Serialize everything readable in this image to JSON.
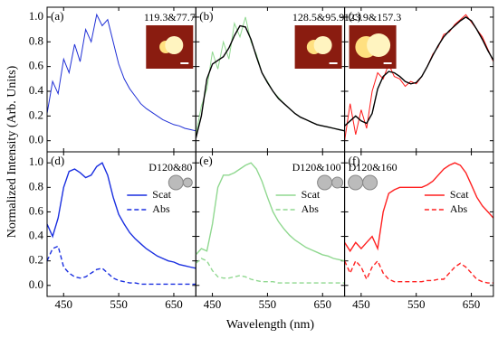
{
  "chart_data": [
    {
      "type": "line",
      "panel_label": "(a)",
      "annotation": "119.3&77.7",
      "ylabel": "Normalized Intensity (Arb. Units)",
      "x": [
        420,
        430,
        440,
        450,
        460,
        470,
        480,
        490,
        500,
        510,
        520,
        530,
        540,
        550,
        560,
        570,
        580,
        590,
        600,
        610,
        620,
        630,
        640,
        650,
        660,
        670,
        680,
        690
      ],
      "xlim": [
        420,
        690
      ],
      "ylim": [
        -0.09,
        1.08
      ],
      "yticks": [
        {
          "value": 0,
          "label": "0.0"
        },
        {
          "value": 0.2,
          "label": "0.2"
        },
        {
          "value": 0.4,
          "label": "0.4"
        },
        {
          "value": 0.6,
          "label": "0.6"
        },
        {
          "value": 0.8,
          "label": "0.8"
        },
        {
          "value": 1.0,
          "label": "1.0"
        }
      ],
      "series": [
        {
          "color": "#1f2fd6",
          "values": [
            0.22,
            0.48,
            0.38,
            0.66,
            0.55,
            0.78,
            0.64,
            0.9,
            0.8,
            1.02,
            0.93,
            0.98,
            0.8,
            0.62,
            0.5,
            0.42,
            0.36,
            0.3,
            0.26,
            0.23,
            0.2,
            0.17,
            0.15,
            0.13,
            0.12,
            0.1,
            0.09,
            0.08
          ]
        }
      ]
    },
    {
      "type": "line",
      "panel_label": "(b)",
      "annotation": "128.5&95.9",
      "x": [
        420,
        430,
        440,
        450,
        460,
        470,
        480,
        490,
        500,
        510,
        520,
        530,
        540,
        550,
        560,
        570,
        580,
        590,
        600,
        610,
        620,
        630,
        640,
        650,
        660,
        670,
        680,
        690
      ],
      "xlim": [
        420,
        690
      ],
      "ylim": [
        -0.09,
        1.08
      ],
      "series": [
        {
          "color": "#8fd88f",
          "values": [
            0.05,
            0.28,
            0.42,
            0.72,
            0.58,
            0.8,
            0.66,
            0.95,
            0.84,
            1.0,
            0.8,
            0.7,
            0.55,
            0.48,
            0.4,
            0.35,
            0.3,
            0.26,
            0.22,
            0.19,
            0.17,
            0.15,
            0.13,
            0.12,
            0.11,
            0.1,
            0.09,
            0.08
          ]
        },
        {
          "color": "#000000",
          "values": [
            0.02,
            0.2,
            0.5,
            0.62,
            0.65,
            0.68,
            0.75,
            0.85,
            0.93,
            0.92,
            0.82,
            0.68,
            0.55,
            0.47,
            0.4,
            0.34,
            0.3,
            0.26,
            0.22,
            0.19,
            0.17,
            0.15,
            0.13,
            0.12,
            0.11,
            0.1,
            0.09,
            0.08
          ]
        }
      ]
    },
    {
      "type": "line",
      "panel_label": "(c)",
      "annotation": "123.9&157.3",
      "x": [
        420,
        430,
        440,
        450,
        460,
        470,
        480,
        490,
        500,
        510,
        520,
        530,
        540,
        550,
        560,
        570,
        580,
        590,
        600,
        610,
        620,
        630,
        640,
        650,
        660,
        670,
        680,
        690
      ],
      "xlim": [
        420,
        690
      ],
      "ylim": [
        -0.09,
        1.08
      ],
      "series": [
        {
          "color": "#ff1a1a",
          "values": [
            0.0,
            0.3,
            0.05,
            0.25,
            0.1,
            0.4,
            0.55,
            0.5,
            0.62,
            0.52,
            0.5,
            0.44,
            0.48,
            0.46,
            0.52,
            0.6,
            0.7,
            0.76,
            0.86,
            0.88,
            0.94,
            0.98,
            1.02,
            0.96,
            0.9,
            0.84,
            0.74,
            0.64
          ]
        },
        {
          "color": "#000000",
          "values": [
            0.12,
            0.16,
            0.2,
            0.16,
            0.14,
            0.22,
            0.42,
            0.52,
            0.56,
            0.55,
            0.52,
            0.48,
            0.46,
            0.47,
            0.52,
            0.6,
            0.69,
            0.77,
            0.84,
            0.89,
            0.93,
            0.97,
            1.0,
            0.97,
            0.9,
            0.82,
            0.73,
            0.65
          ]
        }
      ]
    },
    {
      "type": "line",
      "panel_label": "(d)",
      "annotation": "D120&80",
      "x": [
        420,
        430,
        440,
        450,
        460,
        470,
        480,
        490,
        500,
        510,
        520,
        530,
        540,
        550,
        560,
        570,
        580,
        590,
        600,
        610,
        620,
        630,
        640,
        650,
        660,
        670,
        680,
        690
      ],
      "xlim": [
        420,
        690
      ],
      "ylim": [
        -0.09,
        1.09
      ],
      "legend": "upper right",
      "yticks": [
        {
          "value": 0,
          "label": "0.0"
        },
        {
          "value": 0.2,
          "label": "0.2"
        },
        {
          "value": 0.4,
          "label": "0.4"
        },
        {
          "value": 0.6,
          "label": "0.6"
        },
        {
          "value": 0.8,
          "label": "0.8"
        },
        {
          "value": 1.0,
          "label": "1.0"
        }
      ],
      "xticks": [
        450,
        550,
        650
      ],
      "series": [
        {
          "name": "Scat",
          "color": "#1a2fe0",
          "dash": false,
          "values": [
            0.5,
            0.4,
            0.55,
            0.8,
            0.93,
            0.95,
            0.92,
            0.88,
            0.9,
            0.97,
            1.0,
            0.9,
            0.72,
            0.58,
            0.5,
            0.43,
            0.38,
            0.34,
            0.3,
            0.27,
            0.24,
            0.22,
            0.2,
            0.19,
            0.17,
            0.16,
            0.15,
            0.14
          ]
        },
        {
          "name": "Abs",
          "color": "#1a2fe0",
          "dash": true,
          "values": [
            0.2,
            0.3,
            0.32,
            0.15,
            0.1,
            0.07,
            0.06,
            0.07,
            0.1,
            0.13,
            0.14,
            0.1,
            0.06,
            0.04,
            0.03,
            0.02,
            0.02,
            0.01,
            0.01,
            0.01,
            0.01,
            0.01,
            0.01,
            0.01,
            0.01,
            0.01,
            0.01,
            0.01
          ]
        }
      ]
    },
    {
      "type": "line",
      "panel_label": "(e)",
      "annotation": "D120&100",
      "xlabel": "Wavelength (nm)",
      "x": [
        420,
        430,
        440,
        450,
        460,
        470,
        480,
        490,
        500,
        510,
        520,
        530,
        540,
        550,
        560,
        570,
        580,
        590,
        600,
        610,
        620,
        630,
        640,
        650,
        660,
        670,
        680,
        690
      ],
      "xlim": [
        420,
        690
      ],
      "ylim": [
        -0.09,
        1.09
      ],
      "legend": "upper right",
      "xticks": [
        450,
        550,
        650
      ],
      "series": [
        {
          "name": "Scat",
          "color": "#90d890",
          "dash": false,
          "values": [
            0.25,
            0.3,
            0.28,
            0.5,
            0.8,
            0.9,
            0.9,
            0.92,
            0.95,
            0.98,
            1.0,
            0.95,
            0.85,
            0.72,
            0.6,
            0.52,
            0.46,
            0.41,
            0.37,
            0.34,
            0.31,
            0.29,
            0.27,
            0.25,
            0.24,
            0.22,
            0.21,
            0.2
          ]
        },
        {
          "name": "Abs",
          "color": "#90d890",
          "dash": true,
          "values": [
            0.18,
            0.22,
            0.2,
            0.12,
            0.07,
            0.06,
            0.06,
            0.07,
            0.08,
            0.07,
            0.05,
            0.04,
            0.03,
            0.03,
            0.03,
            0.02,
            0.02,
            0.02,
            0.02,
            0.02,
            0.02,
            0.02,
            0.02,
            0.02,
            0.02,
            0.02,
            0.02,
            0.02
          ]
        }
      ]
    },
    {
      "type": "line",
      "panel_label": "(f)",
      "annotation": "D120&160",
      "x": [
        420,
        430,
        440,
        450,
        460,
        470,
        480,
        490,
        500,
        510,
        520,
        530,
        540,
        550,
        560,
        570,
        580,
        590,
        600,
        610,
        620,
        630,
        640,
        650,
        660,
        670,
        680,
        690
      ],
      "xlim": [
        420,
        690
      ],
      "ylim": [
        -0.09,
        1.09
      ],
      "legend": "upper right",
      "xticks": [
        450,
        550,
        650
      ],
      "series": [
        {
          "name": "Scat",
          "color": "#ff2020",
          "dash": false,
          "values": [
            0.35,
            0.28,
            0.35,
            0.3,
            0.35,
            0.4,
            0.3,
            0.6,
            0.75,
            0.78,
            0.8,
            0.8,
            0.8,
            0.8,
            0.8,
            0.82,
            0.85,
            0.9,
            0.95,
            0.98,
            1.0,
            0.98,
            0.92,
            0.82,
            0.72,
            0.65,
            0.6,
            0.55
          ]
        },
        {
          "name": "Abs",
          "color": "#ff2020",
          "dash": true,
          "values": [
            0.2,
            0.1,
            0.2,
            0.15,
            0.05,
            0.15,
            0.2,
            0.1,
            0.05,
            0.03,
            0.03,
            0.03,
            0.03,
            0.03,
            0.03,
            0.04,
            0.04,
            0.05,
            0.05,
            0.1,
            0.15,
            0.18,
            0.15,
            0.1,
            0.05,
            0.03,
            0.02,
            0.02
          ]
        }
      ]
    }
  ]
}
